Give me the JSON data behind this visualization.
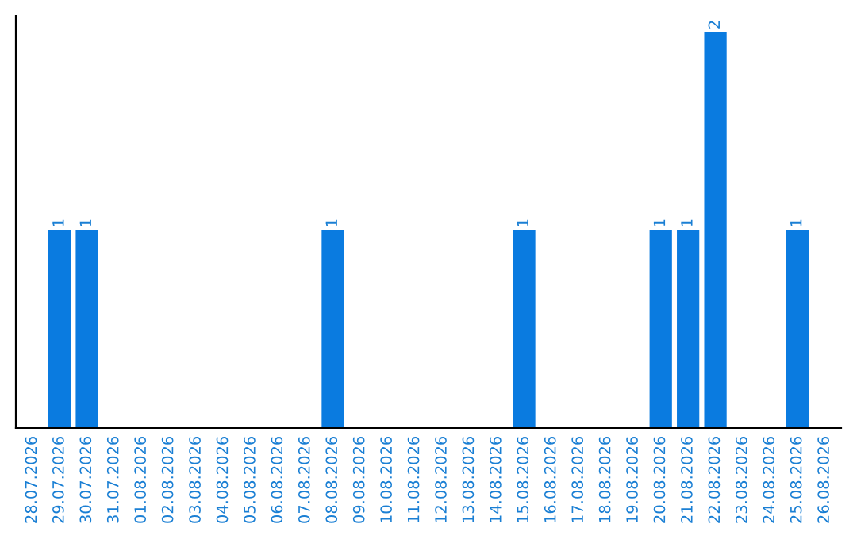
{
  "chart_data": {
    "type": "bar",
    "categories": [
      "28.07.2026",
      "29.07.2026",
      "30.07.2026",
      "31.07.2026",
      "01.08.2026",
      "02.08.2026",
      "03.08.2026",
      "04.08.2026",
      "05.08.2026",
      "06.08.2026",
      "07.08.2026",
      "08.08.2026",
      "09.08.2026",
      "10.08.2026",
      "11.08.2026",
      "12.08.2026",
      "13.08.2026",
      "14.08.2026",
      "15.08.2026",
      "16.08.2026",
      "17.08.2026",
      "18.08.2026",
      "19.08.2026",
      "20.08.2026",
      "21.08.2026",
      "22.08.2026",
      "23.08.2026",
      "24.08.2026",
      "25.08.2026",
      "26.08.2026"
    ],
    "values": [
      0,
      1,
      1,
      0,
      0,
      0,
      0,
      0,
      0,
      0,
      0,
      1,
      0,
      0,
      0,
      0,
      0,
      0,
      1,
      0,
      0,
      0,
      0,
      1,
      1,
      2,
      0,
      0,
      1,
      0
    ],
    "value_labels": [
      null,
      "1",
      "1",
      null,
      null,
      null,
      null,
      null,
      null,
      null,
      null,
      "1",
      null,
      null,
      null,
      null,
      null,
      null,
      "1",
      null,
      null,
      null,
      null,
      "1",
      "1",
      "2",
      null,
      null,
      "1",
      null
    ],
    "color": "#0a7be0",
    "ylim": [
      0,
      2.08
    ],
    "tick_labels": "x",
    "grid": false
  }
}
